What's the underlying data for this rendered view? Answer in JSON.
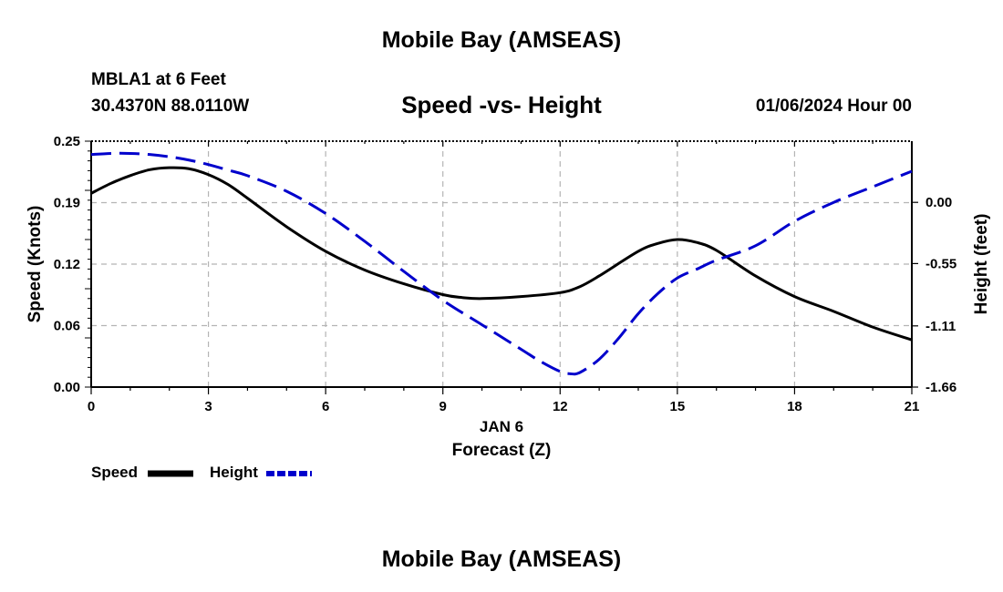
{
  "page": {
    "title": "Mobile Bay (AMSEAS)",
    "station": "MBLA1 at 6 Feet",
    "coordinates": "30.4370N  88.0110W",
    "chart_title": "Speed -vs- Height",
    "datetime": "01/06/2024 Hour 00",
    "footer_title": "Mobile Bay (AMSEAS)"
  },
  "colors": {
    "speed": "#000000",
    "height": "#0000cc",
    "grid": "#b4b4b4"
  },
  "chart_data": {
    "type": "line",
    "title": "Speed -vs- Height",
    "xlabel": "Forecast (Z)",
    "xdate_label": "JAN 6",
    "ylabel_left": "Speed (Knots)",
    "ylabel_right": "Height (feet)",
    "xlim": [
      0,
      21
    ],
    "ylim_left": [
      0,
      0.25
    ],
    "ylim_right": [
      -1.66,
      0.55
    ],
    "x_ticks": [
      0,
      3,
      6,
      9,
      12,
      15,
      18,
      21
    ],
    "y_ticks_left": [
      "0.00",
      "0.06",
      "0.12",
      "0.19",
      "0.25"
    ],
    "y_ticks_right": [
      "-1.66",
      "-1.11",
      "-0.55",
      "0.00"
    ],
    "y_ticks_right_values": [
      -1.66,
      -1.11,
      -0.55,
      0.0
    ],
    "y_ticks_left_values": [
      0.0,
      0.0625,
      0.125,
      0.1875,
      0.25
    ],
    "grid": true,
    "legend_position": "bottom-left",
    "series": [
      {
        "name": "Speed",
        "axis": "left",
        "style": "solid",
        "x": [
          0,
          0.5,
          1,
          1.5,
          2,
          2.5,
          3,
          3.5,
          4,
          5,
          6,
          7,
          8,
          9,
          9.5,
          10,
          11,
          12,
          12.5,
          13,
          14,
          14.5,
          15,
          15.5,
          16,
          17,
          18,
          19,
          20,
          21
        ],
        "values": [
          0.197,
          0.207,
          0.215,
          0.221,
          0.223,
          0.222,
          0.216,
          0.206,
          0.192,
          0.163,
          0.138,
          0.119,
          0.105,
          0.094,
          0.091,
          0.09,
          0.092,
          0.096,
          0.102,
          0.113,
          0.138,
          0.146,
          0.15,
          0.147,
          0.139,
          0.113,
          0.092,
          0.077,
          0.061,
          0.048
        ]
      },
      {
        "name": "Height",
        "axis": "right",
        "style": "dashed",
        "x": [
          0,
          0.5,
          1,
          1.5,
          2,
          2.5,
          3,
          3.5,
          4,
          5,
          6,
          7,
          8,
          9,
          10,
          11,
          11.5,
          12,
          12.25,
          12.5,
          13,
          13.5,
          14,
          14.5,
          15,
          15.5,
          16,
          17,
          18,
          19,
          20,
          21
        ],
        "values": [
          0.43,
          0.44,
          0.44,
          0.43,
          0.41,
          0.38,
          0.34,
          0.29,
          0.24,
          0.1,
          -0.1,
          -0.35,
          -0.62,
          -0.88,
          -1.1,
          -1.32,
          -1.43,
          -1.52,
          -1.54,
          -1.53,
          -1.41,
          -1.22,
          -1.0,
          -0.82,
          -0.68,
          -0.6,
          -0.52,
          -0.39,
          -0.17,
          0.0,
          0.14,
          0.28
        ]
      }
    ]
  }
}
